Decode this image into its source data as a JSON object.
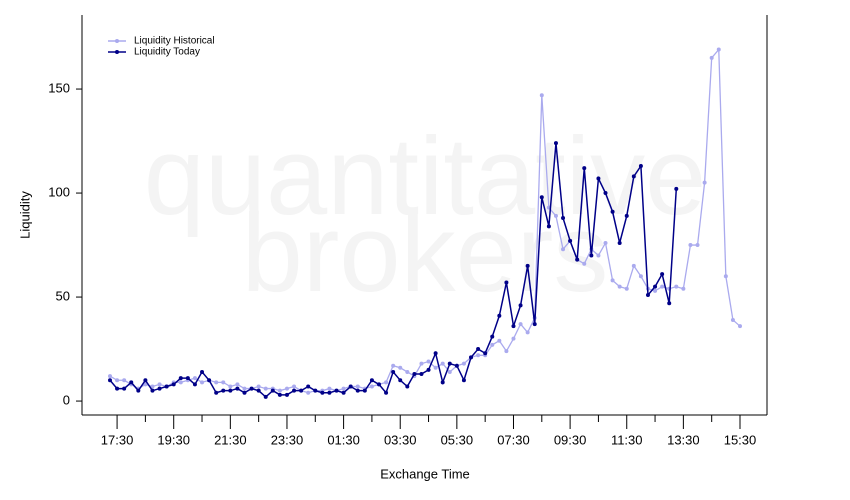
{
  "chart_data": {
    "type": "line",
    "watermark": [
      "quantitative",
      "brokers"
    ],
    "xlabel": "Exchange Time",
    "ylabel": "Liquidity",
    "categories": [
      null,
      "17:30",
      null,
      null,
      null,
      null,
      null,
      null,
      null,
      "19:30",
      null,
      null,
      null,
      null,
      null,
      null,
      null,
      "21:30",
      null,
      null,
      null,
      null,
      null,
      null,
      null,
      "23:30",
      null,
      null,
      null,
      null,
      null,
      null,
      null,
      "01:30",
      null,
      null,
      null,
      null,
      null,
      null,
      null,
      "03:30",
      null,
      null,
      null,
      null,
      null,
      null,
      null,
      "05:30",
      null,
      null,
      null,
      null,
      null,
      null,
      null,
      "07:30",
      null,
      null,
      null,
      null,
      null,
      null,
      null,
      "09:30",
      null,
      null,
      null,
      null,
      null,
      null,
      null,
      "11:30",
      null,
      null,
      null,
      null,
      null,
      null,
      null,
      "13:30",
      null,
      null,
      null,
      null,
      null,
      null,
      null,
      "15:30"
    ],
    "ylim": [
      -6.7,
      185.6
    ],
    "yticks": [
      0,
      50,
      100,
      150
    ],
    "legend": "upper left",
    "series": [
      {
        "name": "Liquidity Historical",
        "color": "#aaaaee",
        "values": [
          12,
          10,
          10,
          8,
          6,
          8,
          7,
          8,
          7,
          9,
          9,
          10,
          11,
          9,
          10,
          9,
          9,
          7,
          8,
          6,
          6,
          7,
          6,
          6,
          5,
          6,
          7,
          5,
          4,
          5,
          5,
          6,
          5,
          6,
          7,
          7,
          6,
          7,
          8,
          9,
          17,
          16,
          14,
          12,
          18,
          19,
          16,
          18,
          14,
          17,
          18,
          21,
          22,
          22,
          27,
          29,
          24,
          30,
          37,
          33,
          40,
          147,
          93,
          89,
          73,
          77,
          68,
          66,
          73,
          70,
          76,
          58,
          55,
          54,
          65,
          60,
          54,
          53,
          55,
          54,
          55,
          54,
          75,
          75,
          105,
          165,
          169,
          60,
          39,
          36
        ]
      },
      {
        "name": "Liquidity Today",
        "color": "#000088",
        "values": [
          10,
          6,
          6,
          9,
          5,
          10,
          5,
          6,
          7,
          8,
          11,
          11,
          8,
          14,
          10,
          4,
          5,
          5,
          6,
          4,
          6,
          5,
          2,
          5,
          3,
          3,
          5,
          5,
          7,
          5,
          4,
          4,
          5,
          4,
          7,
          5,
          5,
          10,
          8,
          4,
          14,
          10,
          7,
          13,
          13,
          15,
          23,
          9,
          18,
          17,
          10,
          21,
          25,
          23,
          31,
          41,
          57,
          36,
          46,
          65,
          37,
          98,
          84,
          124,
          88,
          77,
          68,
          112,
          70,
          107,
          100,
          91,
          76,
          89,
          108,
          113,
          51,
          55,
          61,
          47,
          102,
          null,
          null,
          null,
          null,
          null,
          null,
          null,
          null,
          null
        ]
      }
    ]
  }
}
